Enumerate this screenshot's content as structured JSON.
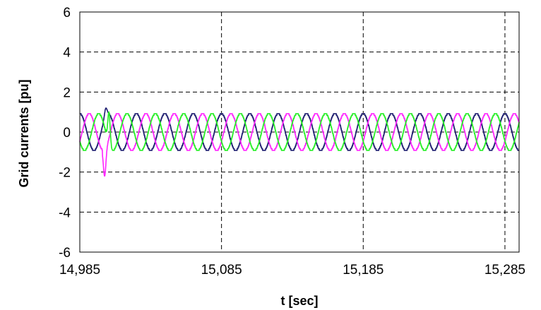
{
  "chart_data": {
    "type": "line",
    "title": "",
    "xlabel": "t [sec]",
    "ylabel": "Grid currents [pu]",
    "xlim": [
      14.985,
      15.295
    ],
    "ylim": [
      -6,
      6
    ],
    "x_ticks": [
      14.985,
      15.085,
      15.185,
      15.285
    ],
    "x_tick_labels": [
      "14,985",
      "15,085",
      "15,185",
      "15,285"
    ],
    "y_ticks": [
      -6,
      -4,
      -2,
      0,
      2,
      4,
      6
    ],
    "y_tick_labels": [
      "-6",
      "-4",
      "-2",
      "0",
      "2",
      "4",
      "6"
    ],
    "grid": "dashed",
    "legend": "none",
    "frequency_hz": 50,
    "amplitude_pu": 0.92,
    "transient_time": [
      15.001,
      15.008
    ],
    "series": [
      {
        "color": "#1a1a6e",
        "phase_deg": 0,
        "transient_peak": 1.2,
        "transient_x": 15.0035
      },
      {
        "color": "#ff22ff",
        "phase_deg": -120,
        "transient_peak": -2.2,
        "transient_x": 15.0025
      },
      {
        "color": "#22ee22",
        "phase_deg": 120,
        "transient_peak": 1.0,
        "transient_x": 15.0055
      }
    ]
  }
}
